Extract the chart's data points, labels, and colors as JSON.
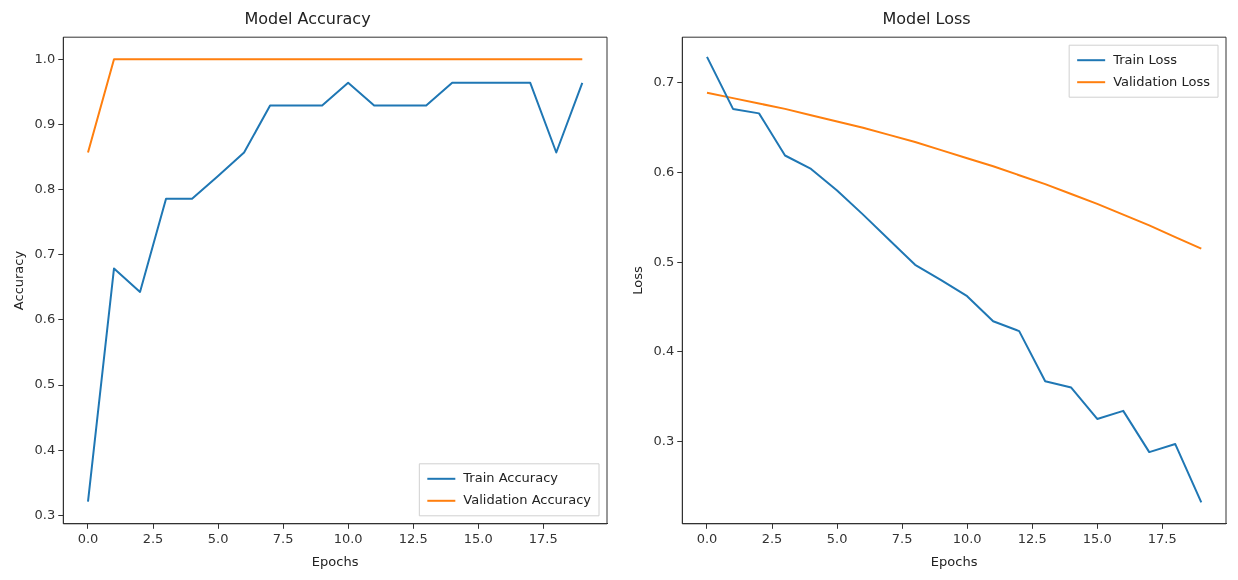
{
  "chart_data": [
    {
      "type": "line",
      "title": "Model Accuracy",
      "xlabel": "Epochs",
      "ylabel": "Accuracy",
      "x": [
        0,
        1,
        2,
        3,
        4,
        5,
        6,
        7,
        8,
        9,
        10,
        11,
        12,
        13,
        14,
        15,
        16,
        17,
        18,
        19
      ],
      "series": [
        {
          "name": "Train Accuracy",
          "color": "#1f77b4",
          "values": [
            0.321,
            0.679,
            0.643,
            0.786,
            0.786,
            0.821,
            0.857,
            0.929,
            0.929,
            0.929,
            0.964,
            0.929,
            0.929,
            0.929,
            0.964,
            0.964,
            0.964,
            0.964,
            0.857,
            0.964
          ]
        },
        {
          "name": "Validation Accuracy",
          "color": "#ff7f0e",
          "values": [
            0.857,
            1,
            1,
            1,
            1,
            1,
            1,
            1,
            1,
            1,
            1,
            1,
            1,
            1,
            1,
            1,
            1,
            1,
            1,
            1
          ]
        }
      ],
      "xlim": [
        -0.95,
        19.95
      ],
      "xticks": [
        {
          "value": 0,
          "label": "0.0"
        },
        {
          "value": 2.5,
          "label": "2.5"
        },
        {
          "value": 5,
          "label": "5.0"
        },
        {
          "value": 7.5,
          "label": "7.5"
        },
        {
          "value": 10,
          "label": "10.0"
        },
        {
          "value": 12.5,
          "label": "12.5"
        },
        {
          "value": 15,
          "label": "15.0"
        },
        {
          "value": 17.5,
          "label": "17.5"
        }
      ],
      "ylim": [
        0.287,
        1.034
      ],
      "yticks": [
        {
          "value": 0.3,
          "label": "0.3"
        },
        {
          "value": 0.4,
          "label": "0.4"
        },
        {
          "value": 0.5,
          "label": "0.5"
        },
        {
          "value": 0.6,
          "label": "0.6"
        },
        {
          "value": 0.7,
          "label": "0.7"
        },
        {
          "value": 0.8,
          "label": "0.8"
        },
        {
          "value": 0.9,
          "label": "0.9"
        },
        {
          "value": 1,
          "label": "1.0"
        }
      ],
      "legend": "bottom right",
      "grid": false,
      "marker": "none",
      "line_style": "solid"
    },
    {
      "type": "line",
      "title": "Model Loss",
      "xlabel": "Epochs",
      "ylabel": "Loss",
      "x": [
        0,
        1,
        2,
        3,
        4,
        5,
        6,
        7,
        8,
        9,
        10,
        11,
        12,
        13,
        14,
        15,
        16,
        17,
        18,
        19
      ],
      "series": [
        {
          "name": "Train Loss",
          "color": "#1f77b4",
          "values": [
            0.729,
            0.671,
            0.666,
            0.619,
            0.604,
            0.58,
            0.553,
            0.525,
            0.497,
            0.48,
            0.462,
            0.434,
            0.423,
            0.367,
            0.36,
            0.325,
            0.334,
            0.288,
            0.297,
            0.232
          ]
        },
        {
          "name": "Validation Loss",
          "color": "#ff7f0e",
          "values": [
            0.689,
            0.683,
            0.677,
            0.671,
            0.664,
            0.657,
            0.65,
            0.642,
            0.634,
            0.625,
            0.616,
            0.607,
            0.597,
            0.587,
            0.576,
            0.565,
            0.553,
            0.541,
            0.528,
            0.515
          ]
        }
      ],
      "xlim": [
        -0.95,
        19.95
      ],
      "xticks": [
        {
          "value": 0,
          "label": "0.0"
        },
        {
          "value": 2.5,
          "label": "2.5"
        },
        {
          "value": 5,
          "label": "5.0"
        },
        {
          "value": 7.5,
          "label": "7.5"
        },
        {
          "value": 10,
          "label": "10.0"
        },
        {
          "value": 12.5,
          "label": "12.5"
        },
        {
          "value": 15,
          "label": "15.0"
        },
        {
          "value": 17.5,
          "label": "17.5"
        }
      ],
      "ylim": [
        0.208,
        0.751
      ],
      "yticks": [
        {
          "value": 0.3,
          "label": "0.3"
        },
        {
          "value": 0.4,
          "label": "0.4"
        },
        {
          "value": 0.5,
          "label": "0.5"
        },
        {
          "value": 0.6,
          "label": "0.6"
        },
        {
          "value": 0.7,
          "label": "0.7"
        }
      ],
      "legend": "top right",
      "grid": false,
      "marker": "none",
      "line_style": "solid"
    }
  ]
}
